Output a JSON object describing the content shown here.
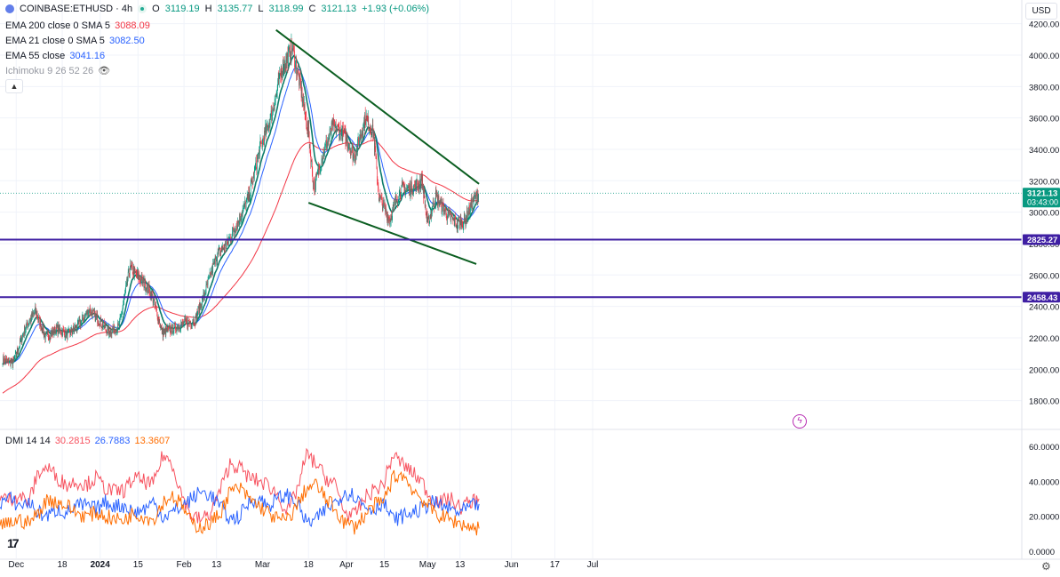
{
  "header": {
    "symbol": "COINBASE:ETHUSD · 4h",
    "o_label": "O",
    "o": "3119.19",
    "h_label": "H",
    "h": "3135.77",
    "l_label": "L",
    "l": "3118.99",
    "c_label": "C",
    "c": "3121.13",
    "change": "+1.93 (+0.06%)",
    "icons": [
      "ethereum-icon",
      "live-dot-icon"
    ]
  },
  "indicators": [
    {
      "label": "EMA 200 close 0 SMA 5",
      "value": "3088.09",
      "color": "#f23645"
    },
    {
      "label": "EMA 21 close 0 SMA 5",
      "value": "3082.50",
      "color": "#2962ff"
    },
    {
      "label": "EMA 55 close",
      "value": "3041.16",
      "color": "#2962ff"
    },
    {
      "label": "Ichimoku 9 26 52 26",
      "value": "",
      "color": "#787b86"
    }
  ],
  "dmi": {
    "label": "DMI 14 14",
    "plus": "30.2815",
    "minus": "26.7883",
    "adx": "13.3607",
    "colors": {
      "plus": "#f7525f",
      "minus": "#2962ff",
      "adx": "#ff6d00"
    }
  },
  "currency_button": "USD",
  "price_tags": [
    {
      "text": "3121.13",
      "sub": "03:43:00",
      "bg": "#089981"
    },
    {
      "text": "2825.27",
      "bg": "#3f1fa3"
    },
    {
      "text": "2458.43",
      "bg": "#3f1fa3"
    }
  ],
  "colors": {
    "up": "#089981",
    "down": "#f23645",
    "ema200": "#f23645",
    "ema21": "#2962ff",
    "ema55": "#0c7c6a",
    "trendline": "#0b5e21",
    "hline": "#3f1fa3",
    "grid": "#f0f3fa"
  },
  "chart_data": [
    {
      "type": "candlestick",
      "title": "COINBASE:ETHUSD · 4h",
      "ylim": [
        1700,
        4250
      ],
      "y_ticks": [
        "4200.00",
        "4000.00",
        "3800.00",
        "3600.00",
        "3400.00",
        "3200.00",
        "3000.00",
        "2800.00",
        "2600.00",
        "2400.00",
        "2200.00",
        "2000.00",
        "1800.00"
      ],
      "x_ticks": [
        "Dec",
        "18",
        "2024",
        "15",
        "Feb",
        "13",
        "Mar",
        "18",
        "Apr",
        "15",
        "May",
        "13",
        "Jun",
        "17",
        "Jul"
      ],
      "anchors": [
        {
          "t": "2023-11-26",
          "price": 2060
        },
        {
          "t": "2023-11-30",
          "price": 2040
        },
        {
          "t": "2023-12-04",
          "price": 2250
        },
        {
          "t": "2023-12-08",
          "price": 2370
        },
        {
          "t": "2023-12-12",
          "price": 2200
        },
        {
          "t": "2023-12-16",
          "price": 2260
        },
        {
          "t": "2023-12-20",
          "price": 2220
        },
        {
          "t": "2023-12-24",
          "price": 2280
        },
        {
          "t": "2023-12-28",
          "price": 2380
        },
        {
          "t": "2024-01-01",
          "price": 2300
        },
        {
          "t": "2024-01-04",
          "price": 2240
        },
        {
          "t": "2024-01-08",
          "price": 2270
        },
        {
          "t": "2024-01-12",
          "price": 2650
        },
        {
          "t": "2024-01-16",
          "price": 2570
        },
        {
          "t": "2024-01-20",
          "price": 2480
        },
        {
          "t": "2024-01-24",
          "price": 2230
        },
        {
          "t": "2024-01-28",
          "price": 2260
        },
        {
          "t": "2024-02-01",
          "price": 2290
        },
        {
          "t": "2024-02-05",
          "price": 2310
        },
        {
          "t": "2024-02-09",
          "price": 2500
        },
        {
          "t": "2024-02-13",
          "price": 2720
        },
        {
          "t": "2024-02-17",
          "price": 2800
        },
        {
          "t": "2024-02-21",
          "price": 2940
        },
        {
          "t": "2024-02-25",
          "price": 3100
        },
        {
          "t": "2024-02-29",
          "price": 3400
        },
        {
          "t": "2024-03-04",
          "price": 3600
        },
        {
          "t": "2024-03-08",
          "price": 3900
        },
        {
          "t": "2024-03-12",
          "price": 4050
        },
        {
          "t": "2024-03-15",
          "price": 3800
        },
        {
          "t": "2024-03-18",
          "price": 3500
        },
        {
          "t": "2024-03-20",
          "price": 3150
        },
        {
          "t": "2024-03-23",
          "price": 3350
        },
        {
          "t": "2024-03-27",
          "price": 3550
        },
        {
          "t": "2024-03-31",
          "price": 3500
        },
        {
          "t": "2024-04-04",
          "price": 3350
        },
        {
          "t": "2024-04-08",
          "price": 3600
        },
        {
          "t": "2024-04-11",
          "price": 3500
        },
        {
          "t": "2024-04-13",
          "price": 3100
        },
        {
          "t": "2024-04-17",
          "price": 2950
        },
        {
          "t": "2024-04-21",
          "price": 3150
        },
        {
          "t": "2024-04-25",
          "price": 3150
        },
        {
          "t": "2024-04-29",
          "price": 3200
        },
        {
          "t": "2024-05-01",
          "price": 2920
        },
        {
          "t": "2024-05-04",
          "price": 3100
        },
        {
          "t": "2024-05-08",
          "price": 2990
        },
        {
          "t": "2024-05-12",
          "price": 2920
        },
        {
          "t": "2024-05-15",
          "price": 2950
        },
        {
          "t": "2024-05-18",
          "price": 3080
        },
        {
          "t": "2024-05-20",
          "price": 3121
        }
      ],
      "horizontal_lines": [
        2825.27,
        2458.43
      ],
      "trendlines": [
        {
          "from": {
            "t": "2024-03-06",
            "price": 4160
          },
          "to": {
            "t": "2024-05-20",
            "price": 3180
          }
        },
        {
          "from": {
            "t": "2024-03-18",
            "price": 3060
          },
          "to": {
            "t": "2024-05-19",
            "price": 2670
          }
        }
      ],
      "last_price": 3121.13
    },
    {
      "type": "line",
      "title": "DMI 14 14",
      "ylim": [
        0,
        65
      ],
      "y_ticks": [
        "60.0000",
        "40.0000",
        "20.0000",
        "0.0000"
      ],
      "series": [
        {
          "name": "+DI",
          "values": [
            30,
            30,
            32,
            28,
            45,
            48,
            42,
            38,
            40,
            38,
            42,
            36,
            34,
            35,
            42,
            40,
            38,
            55,
            50,
            32,
            20,
            18,
            22,
            35,
            50,
            48,
            42,
            40,
            38,
            32,
            22,
            35,
            55,
            50,
            42,
            38,
            22,
            20,
            30,
            35,
            38,
            55,
            50,
            45,
            40,
            30,
            28,
            30,
            25,
            28,
            30
          ]
        },
        {
          "name": "-DI",
          "values": [
            28,
            30,
            26,
            28,
            22,
            20,
            24,
            22,
            26,
            26,
            24,
            28,
            26,
            26,
            22,
            24,
            28,
            20,
            22,
            26,
            30,
            34,
            32,
            26,
            18,
            20,
            28,
            30,
            26,
            30,
            32,
            28,
            16,
            18,
            24,
            28,
            34,
            32,
            26,
            24,
            28,
            18,
            20,
            22,
            24,
            28,
            26,
            24,
            22,
            25,
            27
          ]
        },
        {
          "name": "ADX",
          "values": [
            14,
            16,
            18,
            16,
            22,
            30,
            28,
            26,
            22,
            20,
            22,
            20,
            18,
            18,
            22,
            20,
            18,
            28,
            32,
            26,
            16,
            14,
            16,
            22,
            34,
            36,
            30,
            26,
            22,
            18,
            18,
            26,
            36,
            38,
            30,
            24,
            16,
            14,
            20,
            26,
            28,
            42,
            44,
            36,
            30,
            24,
            20,
            18,
            16,
            14,
            13
          ]
        }
      ]
    }
  ]
}
